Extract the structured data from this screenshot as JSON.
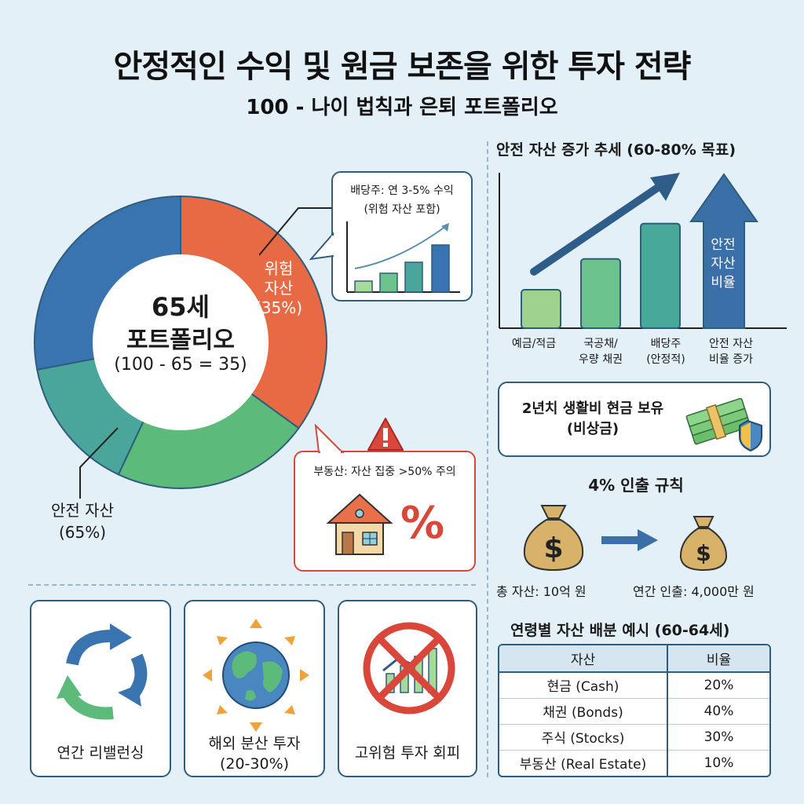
{
  "header": {
    "title": "안정적인 수익 및 원금 보존을 위한 투자 전략",
    "subtitle": "100 - 나이 법칙과 은퇴 포트폴리오"
  },
  "portfolio": {
    "center_line1": "65세",
    "center_line2": "포트폴리오",
    "center_formula": "(100 - 65 = 35)",
    "risk_label_1": "위험",
    "risk_label_2": "자산",
    "risk_pct": "(35%)",
    "safe_label": "안전 자산",
    "safe_pct": "(65%)",
    "segments": [
      {
        "name": "risk",
        "percent": 35,
        "color": "#e86a45"
      },
      {
        "name": "safe-green",
        "percent": 22,
        "color": "#5cbb7a"
      },
      {
        "name": "safe-teal",
        "percent": 15,
        "color": "#4aa59a"
      },
      {
        "name": "safe-blue",
        "percent": 28,
        "color": "#3a74b0"
      }
    ]
  },
  "dividend_callout": {
    "line1": "배당주: 연 3-5% 수익",
    "line2": "(위험 자산 포함)"
  },
  "real_estate_callout": {
    "text": "부동산: 자산 집중 >50% 주의",
    "percent_symbol": "%"
  },
  "trend_chart": {
    "title": "안전 자산 증가 추세 (60-80% 목표)",
    "arrow_label_1": "안전",
    "arrow_label_2": "자산",
    "arrow_label_3": "비율",
    "bars": [
      {
        "label1": "예금/적금",
        "label2": "",
        "level": 0.25,
        "color": "#9fd28e"
      },
      {
        "label1": "국공채/",
        "label2": "우량 채권",
        "level": 0.45,
        "color": "#6cc38c"
      },
      {
        "label1": "배당주",
        "label2": "(안정적)",
        "level": 0.68,
        "color": "#46a99a"
      },
      {
        "label1": "안전 자산",
        "label2": "비율 증가",
        "level": 1.0,
        "color": "#3a6fa8"
      }
    ]
  },
  "emergency": {
    "line1": "2년치 생활비 현금 보유",
    "line2": "(비상금)"
  },
  "withdrawal": {
    "title": "4% 인출 규칙",
    "total_label": "총 자산: 10억 원",
    "annual_label": "연간 인출: 4,000만 원"
  },
  "allocation_table": {
    "title": "연령별 자산 배분 예시 (60-64세)",
    "headers": [
      "자산",
      "비율"
    ],
    "rows": [
      {
        "asset": "현금 (Cash)",
        "ratio": "20%"
      },
      {
        "asset": "채권 (Bonds)",
        "ratio": "40%"
      },
      {
        "asset": "주식 (Stocks)",
        "ratio": "30%"
      },
      {
        "asset": "부동산 (Real Estate)",
        "ratio": "10%"
      }
    ]
  },
  "bottom_cards": [
    {
      "line1": "연간 리밸런싱",
      "line2": ""
    },
    {
      "line1": "해외 분산 투자",
      "line2": "(20-30%)"
    },
    {
      "line1": "고위험 투자 회피",
      "line2": ""
    }
  ],
  "colors": {
    "background": "#e3f0f7",
    "border": "#2f5d7d",
    "risk": "#e86a45",
    "alert": "#d9463a"
  }
}
